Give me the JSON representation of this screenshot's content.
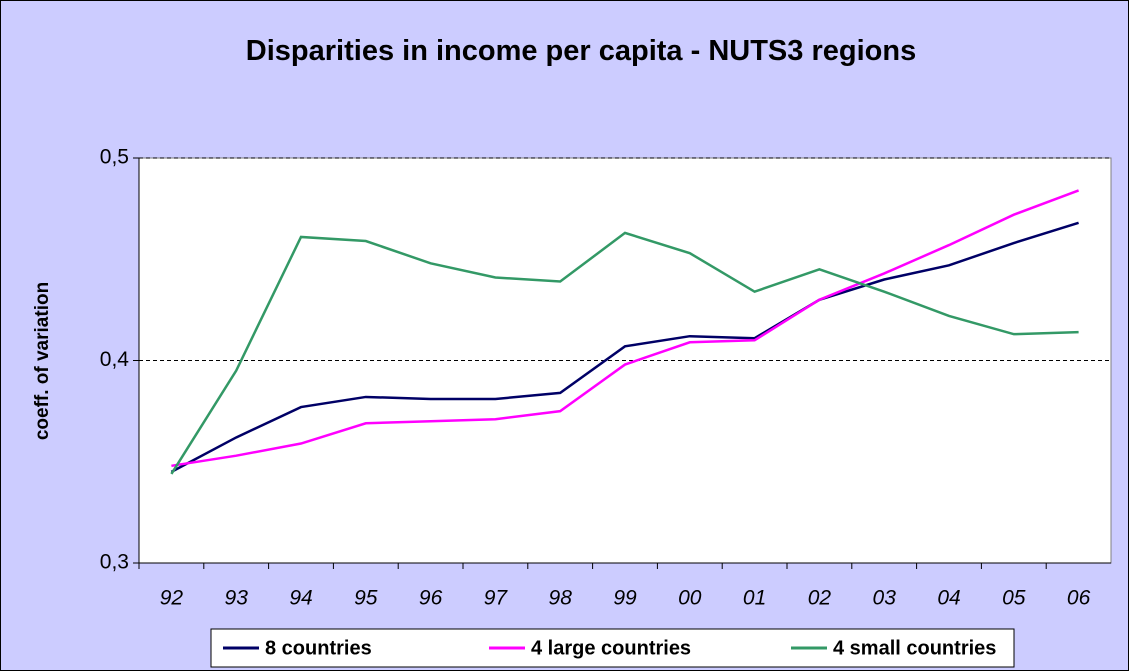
{
  "chart_data": {
    "type": "line",
    "title": "Disparities in income per capita - NUTS3 regions",
    "y_label": "coeff. of variation",
    "categories": [
      "92",
      "93",
      "94",
      "95",
      "96",
      "97",
      "98",
      "99",
      "00",
      "01",
      "02",
      "03",
      "04",
      "05",
      "06"
    ],
    "series": [
      {
        "name": "8 countries",
        "color": "#000066",
        "values": [
          0.345,
          0.362,
          0.377,
          0.382,
          0.381,
          0.381,
          0.384,
          0.407,
          0.412,
          0.411,
          0.43,
          0.44,
          0.447,
          0.458,
          0.468
        ]
      },
      {
        "name": "4 large countries",
        "color": "#ff00ff",
        "values": [
          0.348,
          0.353,
          0.359,
          0.369,
          0.37,
          0.371,
          0.375,
          0.398,
          0.409,
          0.41,
          0.43,
          0.443,
          0.457,
          0.472,
          0.484
        ]
      },
      {
        "name": "4 small countries",
        "color": "#339966",
        "values": [
          0.344,
          0.395,
          0.461,
          0.459,
          0.448,
          0.441,
          0.439,
          0.463,
          0.453,
          0.434,
          0.445,
          0.434,
          0.422,
          0.413,
          0.414
        ]
      }
    ],
    "ylim": [
      0.3,
      0.5
    ],
    "yticks": [
      {
        "value": 0.3,
        "label": "0,3"
      },
      {
        "value": 0.4,
        "label": "0,4"
      },
      {
        "value": 0.5,
        "label": "0,5"
      }
    ],
    "grid": true,
    "legend": "bottom"
  }
}
